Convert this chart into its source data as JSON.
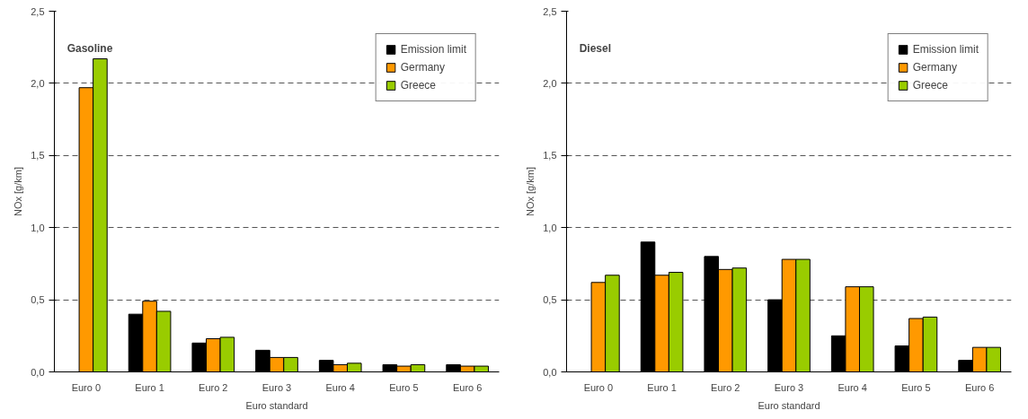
{
  "chart_data": [
    {
      "type": "bar",
      "title": "Gasoline",
      "xlabel": "Euro standard",
      "ylabel": "NOx [g/km]",
      "categories": [
        "Euro 0",
        "Euro 1",
        "Euro 2",
        "Euro 3",
        "Euro 4",
        "Euro 5",
        "Euro 6"
      ],
      "series": [
        {
          "name": "Emission limit",
          "color": "#000000",
          "values": [
            null,
            0.4,
            0.2,
            0.15,
            0.08,
            0.05,
            0.05
          ]
        },
        {
          "name": "Germany",
          "color": "#ff9900",
          "values": [
            1.97,
            0.49,
            0.23,
            0.1,
            0.05,
            0.04,
            0.04
          ]
        },
        {
          "name": "Greece",
          "color": "#99cc00",
          "values": [
            2.17,
            0.42,
            0.24,
            0.1,
            0.06,
            0.05,
            0.04
          ]
        }
      ],
      "ylim": [
        0,
        2.5
      ],
      "yticks": [
        {
          "value": 0,
          "label": "0,0"
        },
        {
          "value": 0.5,
          "label": "0,5"
        },
        {
          "value": 1,
          "label": "1,0"
        },
        {
          "value": 1.5,
          "label": "1,5"
        },
        {
          "value": 2,
          "label": "2,0"
        },
        {
          "value": 2.5,
          "label": "2,5"
        }
      ],
      "grid": "y",
      "legend": "top right"
    },
    {
      "type": "bar",
      "title": "Diesel",
      "xlabel": "Euro standard",
      "ylabel": "NOx [g/km]",
      "categories": [
        "Euro 0",
        "Euro 1",
        "Euro 2",
        "Euro 3",
        "Euro 4",
        "Euro 5",
        "Euro 6"
      ],
      "series": [
        {
          "name": "Emission limit",
          "color": "#000000",
          "values": [
            null,
            0.9,
            0.8,
            0.5,
            0.25,
            0.18,
            0.08
          ]
        },
        {
          "name": "Germany",
          "color": "#ff9900",
          "values": [
            0.62,
            0.67,
            0.71,
            0.78,
            0.59,
            0.37,
            0.17
          ]
        },
        {
          "name": "Greece",
          "color": "#99cc00",
          "values": [
            0.67,
            0.69,
            0.72,
            0.78,
            0.59,
            0.38,
            0.17
          ]
        }
      ],
      "ylim": [
        0,
        2.5
      ],
      "yticks": [
        {
          "value": 0,
          "label": "0,0"
        },
        {
          "value": 0.5,
          "label": "0,5"
        },
        {
          "value": 1,
          "label": "1,0"
        },
        {
          "value": 1.5,
          "label": "1,5"
        },
        {
          "value": 2,
          "label": "2,0"
        },
        {
          "value": 2.5,
          "label": "2,5"
        }
      ],
      "grid": "y",
      "legend": "top right"
    }
  ]
}
